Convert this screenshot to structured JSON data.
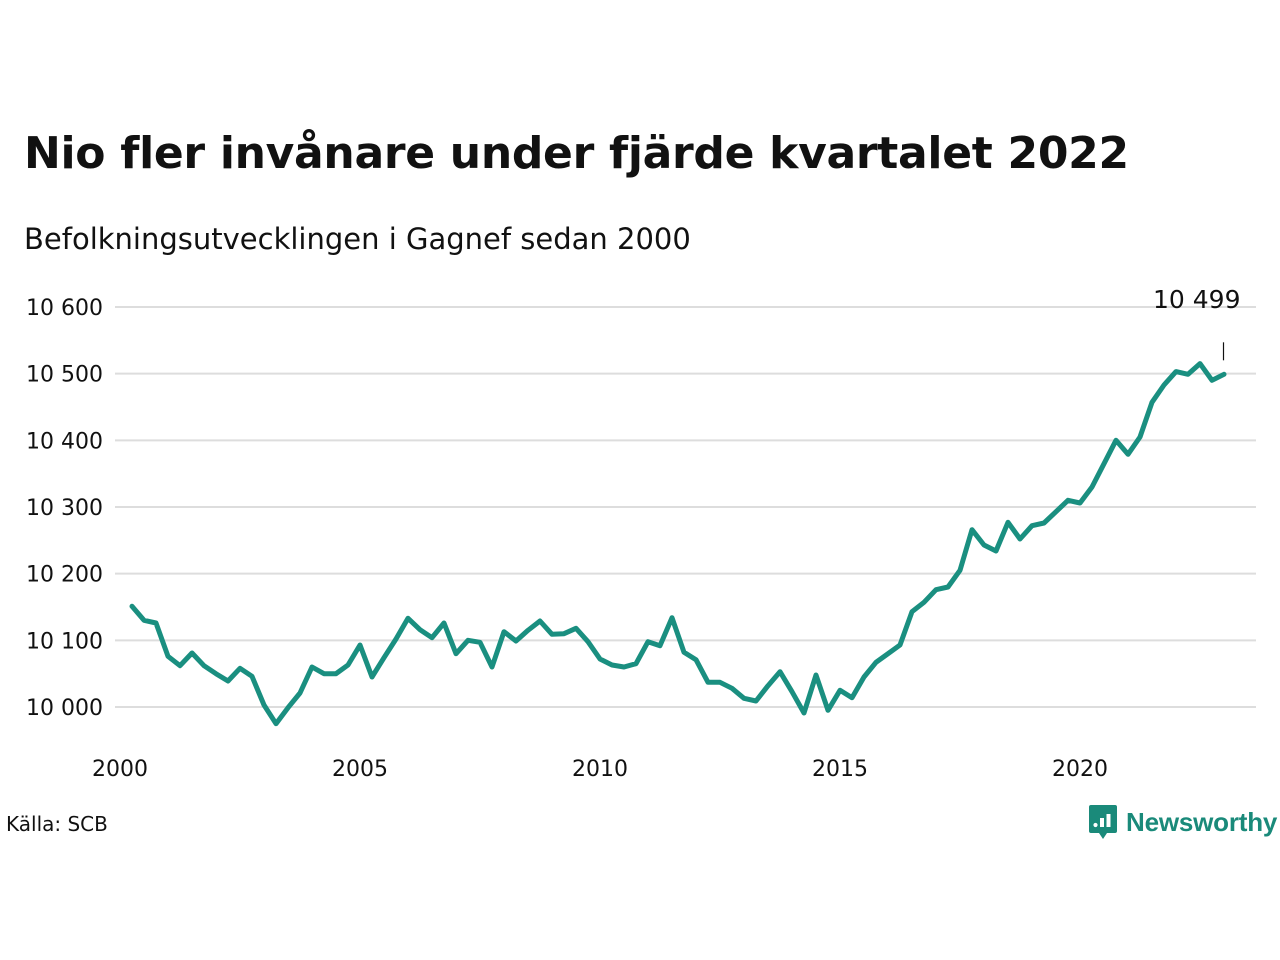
{
  "header": {
    "title": "Nio fler invånare under fjärde kvartalet 2022",
    "subtitle": "Befolkningsutvecklingen i Gagnef sedan 2000"
  },
  "footer": {
    "source": "Källa: SCB",
    "brand": "Newsworthy",
    "brand_icon": "chart-bubble-logo-icon"
  },
  "colors": {
    "line": "#1a8f80",
    "grid": "#dddddd",
    "brand": "#1a8a7a"
  },
  "chart_data": {
    "type": "line",
    "title": "Nio fler invånare under fjärde kvartalet 2022",
    "subtitle": "Befolkningsutvecklingen i Gagnef sedan 2000",
    "xlabel": "",
    "ylabel": "",
    "x_ticks": [
      "2000",
      "2005",
      "2010",
      "2015",
      "2020"
    ],
    "y_ticks": [
      "10 000",
      "10 100",
      "10 200",
      "10 300",
      "10 400",
      "10 500",
      "10 600"
    ],
    "ylim": [
      9965,
      10600
    ],
    "grid": true,
    "legend": "none",
    "annotation": {
      "label": "10 499",
      "value": 10499,
      "period": "2022K4"
    },
    "series": [
      {
        "values": [
          {
            "x": "2000K1",
            "y": 10151
          },
          {
            "x": "2000K2",
            "y": 10130
          },
          {
            "x": "2000K3",
            "y": 10126
          },
          {
            "x": "2000K4",
            "y": 10076
          },
          {
            "x": "2001K1",
            "y": 10062
          },
          {
            "x": "2001K2",
            "y": 10081
          },
          {
            "x": "2001K3",
            "y": 10062
          },
          {
            "x": "2001K4",
            "y": 10050
          },
          {
            "x": "2002K1",
            "y": 10039
          },
          {
            "x": "2002K2",
            "y": 10058
          },
          {
            "x": "2002K3",
            "y": 10046
          },
          {
            "x": "2002K4",
            "y": 10003
          },
          {
            "x": "2003K1",
            "y": 9975
          },
          {
            "x": "2003K2",
            "y": 9999
          },
          {
            "x": "2003K3",
            "y": 10021
          },
          {
            "x": "2003K4",
            "y": 10060
          },
          {
            "x": "2004K1",
            "y": 10050
          },
          {
            "x": "2004K2",
            "y": 10050
          },
          {
            "x": "2004K3",
            "y": 10063
          },
          {
            "x": "2004K4",
            "y": 10093
          },
          {
            "x": "2005K1",
            "y": 10045
          },
          {
            "x": "2005K2",
            "y": 10074
          },
          {
            "x": "2005K3",
            "y": 10102
          },
          {
            "x": "2005K4",
            "y": 10133
          },
          {
            "x": "2006K1",
            "y": 10116
          },
          {
            "x": "2006K2",
            "y": 10104
          },
          {
            "x": "2006K3",
            "y": 10126
          },
          {
            "x": "2006K4",
            "y": 10080
          },
          {
            "x": "2007K1",
            "y": 10100
          },
          {
            "x": "2007K2",
            "y": 10097
          },
          {
            "x": "2007K3",
            "y": 10060
          },
          {
            "x": "2007K4",
            "y": 10113
          },
          {
            "x": "2008K1",
            "y": 10099
          },
          {
            "x": "2008K2",
            "y": 10115
          },
          {
            "x": "2008K3",
            "y": 10129
          },
          {
            "x": "2008K4",
            "y": 10109
          },
          {
            "x": "2009K1",
            "y": 10110
          },
          {
            "x": "2009K2",
            "y": 10118
          },
          {
            "x": "2009K3",
            "y": 10098
          },
          {
            "x": "2009K4",
            "y": 10072
          },
          {
            "x": "2010K1",
            "y": 10063
          },
          {
            "x": "2010K2",
            "y": 10060
          },
          {
            "x": "2010K3",
            "y": 10065
          },
          {
            "x": "2010K4",
            "y": 10098
          },
          {
            "x": "2011K1",
            "y": 10092
          },
          {
            "x": "2011K2",
            "y": 10134
          },
          {
            "x": "2011K3",
            "y": 10082
          },
          {
            "x": "2011K4",
            "y": 10071
          },
          {
            "x": "2012K1",
            "y": 10037
          },
          {
            "x": "2012K2",
            "y": 10037
          },
          {
            "x": "2012K3",
            "y": 10028
          },
          {
            "x": "2012K4",
            "y": 10013
          },
          {
            "x": "2013K1",
            "y": 10009
          },
          {
            "x": "2013K2",
            "y": 10032
          },
          {
            "x": "2013K3",
            "y": 10053
          },
          {
            "x": "2013K4",
            "y": 10023
          },
          {
            "x": "2014K1",
            "y": 9991
          },
          {
            "x": "2014K2",
            "y": 10048
          },
          {
            "x": "2014K3",
            "y": 9995
          },
          {
            "x": "2014K4",
            "y": 10025
          },
          {
            "x": "2015K1",
            "y": 10014
          },
          {
            "x": "2015K2",
            "y": 10045
          },
          {
            "x": "2015K3",
            "y": 10067
          },
          {
            "x": "2015K4",
            "y": 10080
          },
          {
            "x": "2016K1",
            "y": 10093
          },
          {
            "x": "2016K2",
            "y": 10143
          },
          {
            "x": "2016K3",
            "y": 10157
          },
          {
            "x": "2016K4",
            "y": 10176
          },
          {
            "x": "2017K1",
            "y": 10180
          },
          {
            "x": "2017K2",
            "y": 10205
          },
          {
            "x": "2017K3",
            "y": 10266
          },
          {
            "x": "2017K4",
            "y": 10243
          },
          {
            "x": "2018K1",
            "y": 10234
          },
          {
            "x": "2018K2",
            "y": 10277
          },
          {
            "x": "2018K3",
            "y": 10252
          },
          {
            "x": "2018K4",
            "y": 10272
          },
          {
            "x": "2019K1",
            "y": 10276
          },
          {
            "x": "2019K2",
            "y": 10293
          },
          {
            "x": "2019K3",
            "y": 10310
          },
          {
            "x": "2019K4",
            "y": 10306
          },
          {
            "x": "2020K1",
            "y": 10330
          },
          {
            "x": "2020K2",
            "y": 10365
          },
          {
            "x": "2020K3",
            "y": 10400
          },
          {
            "x": "2020K4",
            "y": 10379
          },
          {
            "x": "2021K1",
            "y": 10405
          },
          {
            "x": "2021K2",
            "y": 10457
          },
          {
            "x": "2021K3",
            "y": 10483
          },
          {
            "x": "2021K4",
            "y": 10503
          },
          {
            "x": "2022K1",
            "y": 10499
          },
          {
            "x": "2022K2",
            "y": 10515
          },
          {
            "x": "2022K3",
            "y": 10490
          },
          {
            "x": "2022K4",
            "y": 10499
          }
        ]
      }
    ]
  }
}
